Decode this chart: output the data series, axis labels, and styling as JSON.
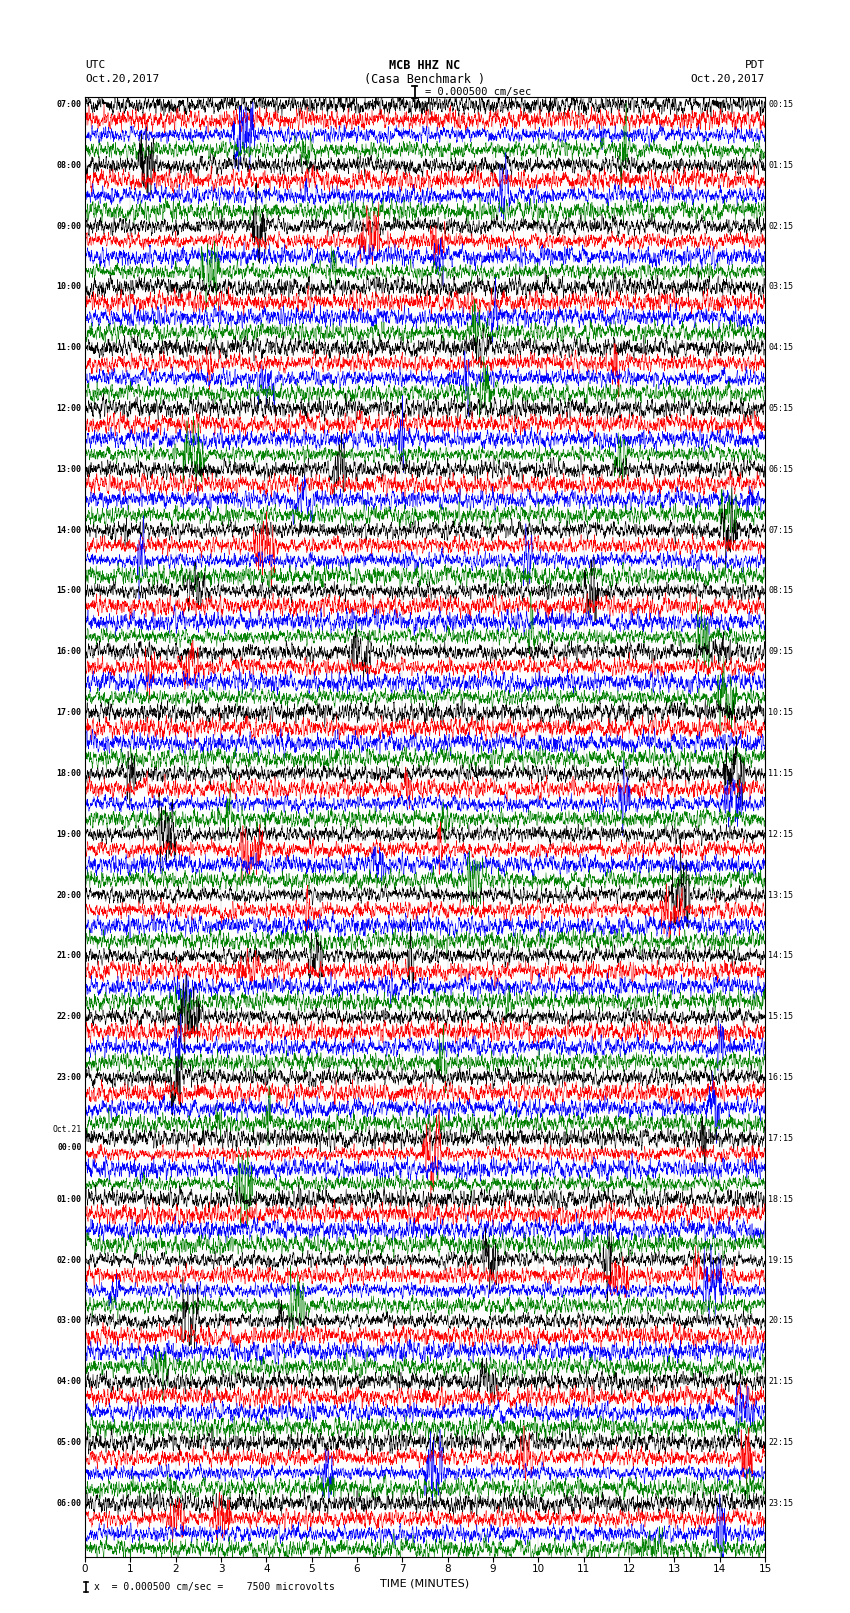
{
  "title_line1": "MCB HHZ NC",
  "title_line2": "(Casa Benchmark )",
  "scale_label": "= 0.000500 cm/sec",
  "footer_label": "x  = 0.000500 cm/sec =    7500 microvolts",
  "left_label_top": "UTC",
  "left_label_date": "Oct.20,2017",
  "right_label_top": "PDT",
  "right_label_date": "Oct.20,2017",
  "xlabel": "TIME (MINUTES)",
  "xlim": [
    0,
    15
  ],
  "xticks": [
    0,
    1,
    2,
    3,
    4,
    5,
    6,
    7,
    8,
    9,
    10,
    11,
    12,
    13,
    14,
    15
  ],
  "colors": [
    "black",
    "red",
    "blue",
    "green"
  ],
  "fig_width": 8.5,
  "fig_height": 16.13,
  "bg_color": "white",
  "utc_times": [
    "07:00",
    "08:00",
    "09:00",
    "10:00",
    "11:00",
    "12:00",
    "13:00",
    "14:00",
    "15:00",
    "16:00",
    "17:00",
    "18:00",
    "19:00",
    "20:00",
    "21:00",
    "22:00",
    "23:00",
    "Oct.21\n00:00",
    "01:00",
    "02:00",
    "03:00",
    "04:00",
    "05:00",
    "06:00"
  ],
  "pdt_times": [
    "00:15",
    "01:15",
    "02:15",
    "03:15",
    "04:15",
    "05:15",
    "06:15",
    "07:15",
    "08:15",
    "09:15",
    "10:15",
    "11:15",
    "12:15",
    "13:15",
    "14:15",
    "15:15",
    "16:15",
    "17:15",
    "18:15",
    "19:15",
    "20:15",
    "21:15",
    "22:15",
    "23:15"
  ]
}
